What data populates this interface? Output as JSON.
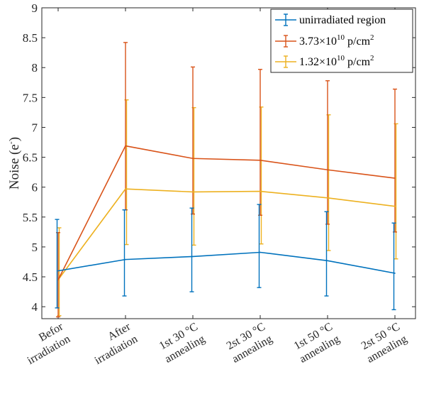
{
  "chart_data": {
    "type": "line",
    "title": "",
    "xlabel": "",
    "ylabel": "Noise (e",
    "ylabel_sup": "-",
    "ylabel_close": ")",
    "ylim": [
      3.8,
      9.0
    ],
    "yticks": [
      4,
      4.5,
      5,
      5.5,
      6,
      6.5,
      7,
      7.5,
      8,
      8.5,
      9
    ],
    "grid": false,
    "legend_position": "top-right",
    "categories": [
      [
        "Befor",
        "irradiation"
      ],
      [
        "After",
        "irradiation"
      ],
      [
        "1st 30 °C",
        "annealing"
      ],
      [
        "2st 30 °C",
        "annealing"
      ],
      [
        "1st 50 °C",
        "annealing"
      ],
      [
        "2st 50 °C",
        "annealing"
      ]
    ],
    "series": [
      {
        "name": "unirradiated region",
        "color": "#0072BD",
        "values": [
          4.6,
          4.79,
          4.84,
          4.91,
          4.77,
          4.56
        ],
        "err_low": [
          3.98,
          4.18,
          4.25,
          4.32,
          4.18,
          3.95
        ],
        "err_high": [
          5.46,
          5.62,
          5.65,
          5.71,
          5.59,
          5.4
        ]
      },
      {
        "name": "3.73×10",
        "name_sup": "10",
        "name_rest": " p/cm",
        "name_sup2": "2",
        "color": "#D95319",
        "values": [
          4.45,
          6.69,
          6.48,
          6.45,
          6.29,
          6.15
        ],
        "err_low": [
          3.83,
          5.62,
          5.55,
          5.53,
          5.38,
          5.25
        ],
        "err_high": [
          5.24,
          8.42,
          8.01,
          7.97,
          7.78,
          7.64
        ]
      },
      {
        "name": "1.32×10",
        "name_sup": "10",
        "name_rest": " p/cm",
        "name_sup2": "2",
        "color": "#EDB120",
        "values": [
          4.45,
          5.97,
          5.92,
          5.93,
          5.82,
          5.68
        ],
        "err_low": [
          3.85,
          5.04,
          5.03,
          5.05,
          4.94,
          4.8
        ],
        "err_high": [
          5.32,
          7.46,
          7.33,
          7.34,
          7.21,
          7.06
        ]
      }
    ]
  }
}
